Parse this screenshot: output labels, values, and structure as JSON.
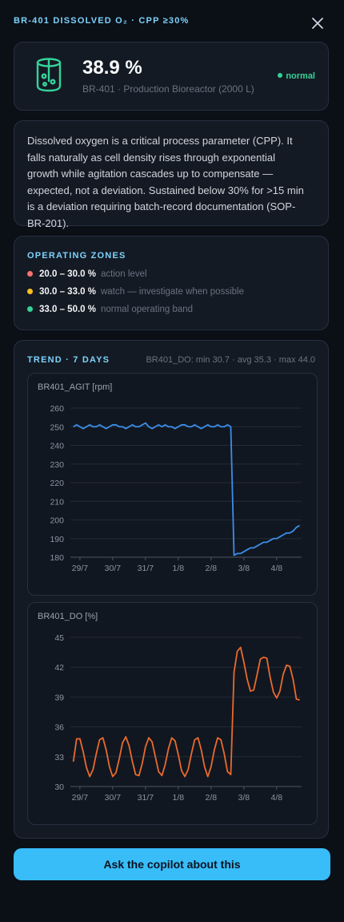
{
  "header": {
    "title": "BR-401 DISSOLVED O₂ · CPP ≥30%"
  },
  "summary": {
    "value": "38.9 %",
    "subtitle": "BR-401 · Production Bioreactor (2000 L)",
    "status": "normal"
  },
  "description": "Dissolved oxygen is a critical process parameter (CPP). It falls naturally as cell density rises through exponential growth while agitation cascades up to compensate — expected, not a deviation. Sustained below 30% for >15 min is a deviation requiring batch-record documentation (SOP-BR-201).",
  "zones": {
    "title": "OPERATING ZONES",
    "items": [
      {
        "range": "20.0 – 30.0 %",
        "label": "action level",
        "color": "#f87171"
      },
      {
        "range": "30.0 – 33.0 %",
        "label": "watch — investigate when possible",
        "color": "#fbbf24"
      },
      {
        "range": "33.0 – 50.0 %",
        "label": "normal operating band",
        "color": "#34d399"
      }
    ]
  },
  "trend": {
    "title": "TREND · 7 DAYS",
    "stats": "BR401_DO: min 30.7 · avg 35.3 · max 44.0"
  },
  "chart_data": [
    {
      "type": "line",
      "title": "BR401_AGIT [rpm]",
      "x": [
        -0.2,
        -0.1,
        0,
        0.1,
        0.2,
        0.3,
        0.4,
        0.5,
        0.6,
        0.7,
        0.8,
        0.9,
        1,
        1.1,
        1.2,
        1.3,
        1.4,
        1.5,
        1.6,
        1.7,
        1.8,
        1.9,
        2,
        2.1,
        2.2,
        2.3,
        2.4,
        2.5,
        2.6,
        2.7,
        2.8,
        2.9,
        3,
        3.1,
        3.2,
        3.3,
        3.4,
        3.5,
        3.6,
        3.7,
        3.8,
        3.9,
        4,
        4.1,
        4.2,
        4.3,
        4.4,
        4.5,
        4.6,
        4.7,
        4.8,
        4.9,
        5,
        5.1,
        5.2,
        5.3,
        5.4,
        5.5,
        5.6,
        5.7,
        5.8,
        5.9,
        6,
        6.1,
        6.2,
        6.3,
        6.4,
        6.5,
        6.6,
        6.7
      ],
      "series": [
        {
          "name": "BR401_AGIT",
          "color": "#3b8eea",
          "values": [
            250,
            251,
            250,
            249,
            250,
            251,
            250,
            250,
            251,
            250,
            249,
            250,
            251,
            251,
            250,
            250,
            249,
            250,
            251,
            250,
            250,
            251,
            252,
            250,
            249,
            250,
            251,
            250,
            251,
            250,
            250,
            249,
            250,
            251,
            251,
            250,
            250,
            251,
            250,
            249,
            250,
            251,
            250,
            250,
            251,
            250,
            250,
            251,
            250,
            181,
            182,
            182,
            183,
            184,
            185,
            185,
            186,
            187,
            188,
            188,
            189,
            190,
            190,
            191,
            192,
            193,
            193,
            194,
            196,
            197
          ]
        }
      ],
      "xlim": [
        -0.29,
        6.76
      ],
      "xticks": [
        {
          "value": 0,
          "label": "29/7"
        },
        {
          "value": 1,
          "label": "30/7"
        },
        {
          "value": 2,
          "label": "31/7"
        },
        {
          "value": 3,
          "label": "1/8"
        },
        {
          "value": 4,
          "label": "2/8"
        },
        {
          "value": 5,
          "label": "3/8"
        },
        {
          "value": 6,
          "label": "4/8"
        }
      ],
      "ylim": [
        180,
        260
      ],
      "yticks": [
        180,
        190,
        200,
        210,
        220,
        230,
        240,
        250,
        260
      ],
      "grid": true
    },
    {
      "type": "line",
      "title": "BR401_DO [%]",
      "x": [
        -0.2,
        -0.1,
        0,
        0.1,
        0.2,
        0.3,
        0.4,
        0.5,
        0.6,
        0.7,
        0.8,
        0.9,
        1,
        1.1,
        1.2,
        1.3,
        1.4,
        1.5,
        1.6,
        1.7,
        1.8,
        1.9,
        2,
        2.1,
        2.2,
        2.3,
        2.4,
        2.5,
        2.6,
        2.7,
        2.8,
        2.9,
        3,
        3.1,
        3.2,
        3.3,
        3.4,
        3.5,
        3.6,
        3.7,
        3.8,
        3.9,
        4,
        4.1,
        4.2,
        4.3,
        4.4,
        4.5,
        4.6,
        4.7,
        4.8,
        4.9,
        5,
        5.1,
        5.2,
        5.3,
        5.4,
        5.5,
        5.6,
        5.7,
        5.8,
        5.9,
        6,
        6.1,
        6.2,
        6.3,
        6.4,
        6.5,
        6.6,
        6.7
      ],
      "series": [
        {
          "name": "BR401_DO",
          "color": "#ea6a2e",
          "values": [
            32.5,
            34.8,
            34.8,
            33.5,
            31.9,
            31.0,
            31.7,
            33.3,
            34.7,
            34.9,
            33.7,
            32.0,
            31.0,
            31.4,
            32.8,
            34.4,
            35.0,
            34.1,
            32.5,
            31.2,
            31.1,
            32.3,
            34.0,
            34.9,
            34.5,
            33.0,
            31.5,
            31.1,
            32.2,
            33.8,
            34.9,
            34.6,
            33.2,
            31.6,
            31.0,
            31.7,
            33.3,
            34.7,
            34.9,
            33.7,
            32.0,
            31.0,
            32.0,
            33.7,
            34.9,
            34.7,
            33.3,
            31.5,
            31.2,
            41.5,
            43.6,
            44.0,
            42.5,
            40.8,
            39.6,
            39.7,
            41.2,
            42.8,
            43.0,
            42.9,
            41.0,
            39.5,
            38.9,
            39.6,
            41.3,
            42.2,
            42.1,
            40.8,
            38.8,
            38.7
          ]
        }
      ],
      "xlim": [
        -0.29,
        6.76
      ],
      "xticks": [
        {
          "value": 0,
          "label": "29/7"
        },
        {
          "value": 1,
          "label": "30/7"
        },
        {
          "value": 2,
          "label": "31/7"
        },
        {
          "value": 3,
          "label": "1/8"
        },
        {
          "value": 4,
          "label": "2/8"
        },
        {
          "value": 5,
          "label": "3/8"
        },
        {
          "value": 6,
          "label": "4/8"
        }
      ],
      "ylim": [
        30,
        45
      ],
      "yticks": [
        30,
        33,
        36,
        39,
        42,
        45
      ],
      "grid": true
    }
  ],
  "button": "Ask the copilot about this"
}
